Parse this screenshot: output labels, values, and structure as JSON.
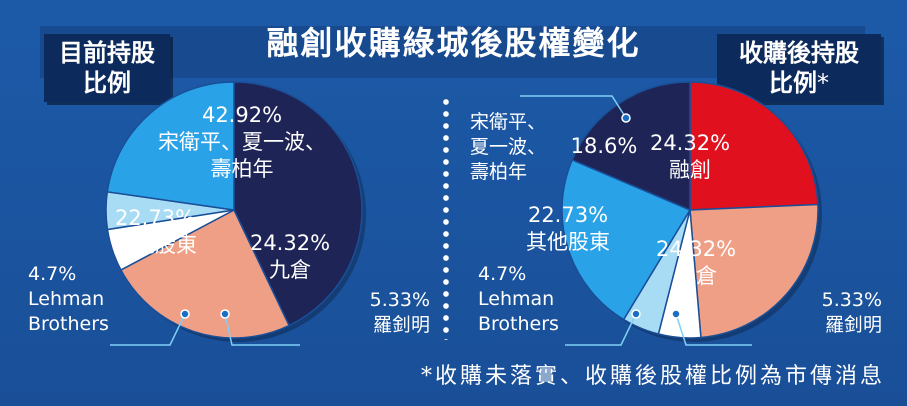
{
  "title": "融創收購綠城後股權變化",
  "left_tag": [
    "目前持股",
    "比例"
  ],
  "right_tag": [
    "收購後持股",
    "比例"
  ],
  "right_tag_mark": "*",
  "footnote": "*收購未落實、收購後股權比例為市傳消息",
  "chart_data": [
    {
      "type": "pie",
      "name": "目前持股比例",
      "slices": [
        {
          "label": "宋衛平、夏一波、\n壽柏年",
          "pct_text": "42.92%",
          "value": 42.92,
          "color": "#1e2456"
        },
        {
          "label": "九倉",
          "pct_text": "24.32%",
          "value": 24.32,
          "color": "#ef9f85"
        },
        {
          "label": "羅釗明",
          "pct_text": "5.33%",
          "value": 5.33,
          "color": "#ffffff"
        },
        {
          "label": "Lehman\nBrothers",
          "pct_text": "4.7%",
          "value": 4.7,
          "color": "#a8dcf5"
        },
        {
          "label": "其他股東",
          "pct_text": "22.73%",
          "value": 22.73,
          "color": "#2aa2e8"
        }
      ]
    },
    {
      "type": "pie",
      "name": "收購後持股比例",
      "slices": [
        {
          "label": "融創",
          "pct_text": "24.32%",
          "value": 24.32,
          "color": "#e0101e"
        },
        {
          "label": "九倉",
          "pct_text": "24.32%",
          "value": 24.32,
          "color": "#ef9f85"
        },
        {
          "label": "羅釗明",
          "pct_text": "5.33%",
          "value": 5.33,
          "color": "#ffffff"
        },
        {
          "label": "Lehman\nBrothers",
          "pct_text": "4.7%",
          "value": 4.7,
          "color": "#a8dcf5"
        },
        {
          "label": "其他股東",
          "pct_text": "22.73%",
          "value": 22.73,
          "color": "#2aa2e8"
        },
        {
          "label": "宋衛平、\n夏一波、\n壽柏年",
          "pct_text": "18.6%",
          "value": 18.6,
          "color": "#1e2456"
        }
      ]
    }
  ]
}
